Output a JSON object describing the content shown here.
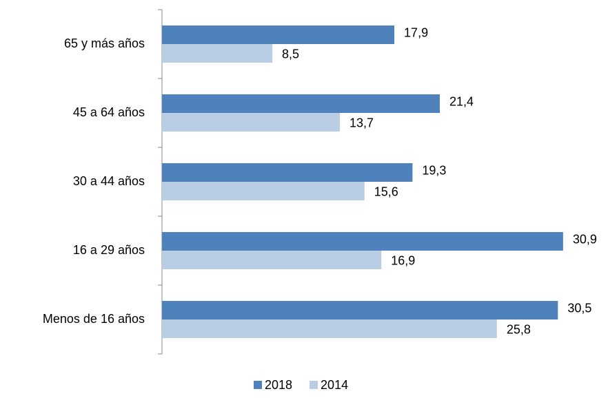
{
  "chart_data": {
    "type": "bar",
    "orientation": "horizontal",
    "legend": "bottom",
    "categories": [
      "65 y más años",
      "45 a 64 años",
      "30 a 44 años",
      "16 a 29 años",
      "Menos de 16 años"
    ],
    "series": [
      {
        "name": "2018",
        "color": "#4f81bd",
        "values": [
          17.9,
          21.4,
          19.3,
          30.9,
          30.5
        ],
        "value_labels": [
          "17,9",
          "21,4",
          "19,3",
          "30,9",
          "30,5"
        ]
      },
      {
        "name": "2014",
        "color": "#b9cde5",
        "values": [
          8.5,
          13.7,
          15.6,
          16.9,
          25.8
        ],
        "value_labels": [
          "8,5",
          "13,7",
          "15,6",
          "16,9",
          "25,8"
        ]
      }
    ]
  }
}
